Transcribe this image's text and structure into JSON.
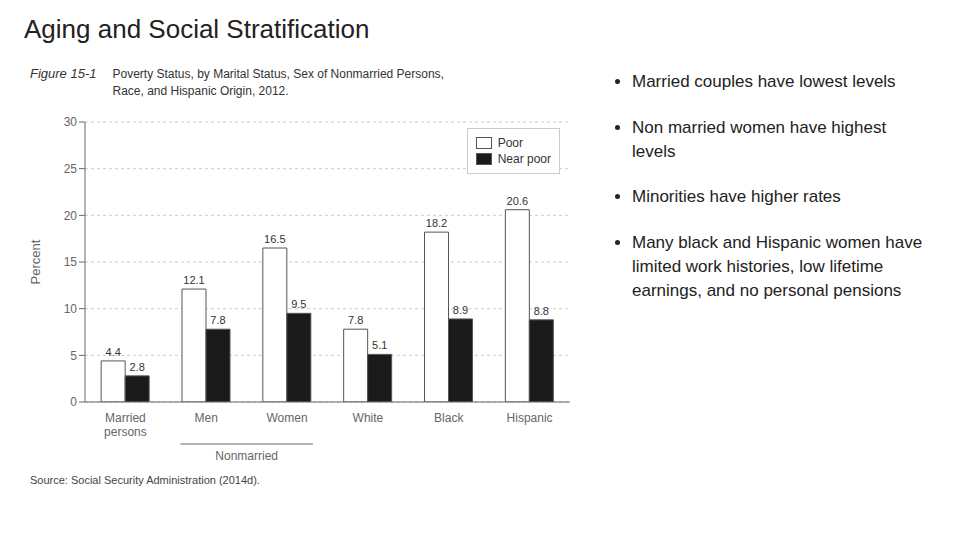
{
  "chart_data": {
    "type": "bar",
    "title": "Aging and Social Stratification",
    "figure_label": "Figure 15-1",
    "subtitle": "Poverty Status, by Marital Status, Sex of Nonmarried Persons,\nRace, and Hispanic Origin, 2012.",
    "ylabel": "Percent",
    "source": "Source: Social Security Administration (2014d).",
    "categories": [
      "Married\npersons",
      "Men",
      "Women",
      "White",
      "Black",
      "Hispanic"
    ],
    "groups": [
      {
        "label": "Nonmarried",
        "categories": [
          "Men",
          "Women"
        ]
      }
    ],
    "series": [
      {
        "name": "Poor",
        "color": "#ffffff",
        "values": [
          4.4,
          12.1,
          16.5,
          7.8,
          18.2,
          20.6
        ]
      },
      {
        "name": "Near poor",
        "color": "#1a1a1a",
        "values": [
          2.8,
          7.8,
          9.5,
          5.1,
          8.9,
          8.8
        ]
      }
    ],
    "ylim": [
      0,
      30
    ],
    "yticks": [
      0,
      5,
      10,
      15,
      20,
      25,
      30
    ],
    "grid": true,
    "legend": "upper right",
    "data_labels": true,
    "annotations": [
      "Married couples have lowest levels",
      "Non married women have highest levels",
      "Minorities have higher rates",
      "Many black and Hispanic women have limited work histories, low lifetime earnings, and no personal pensions"
    ]
  }
}
